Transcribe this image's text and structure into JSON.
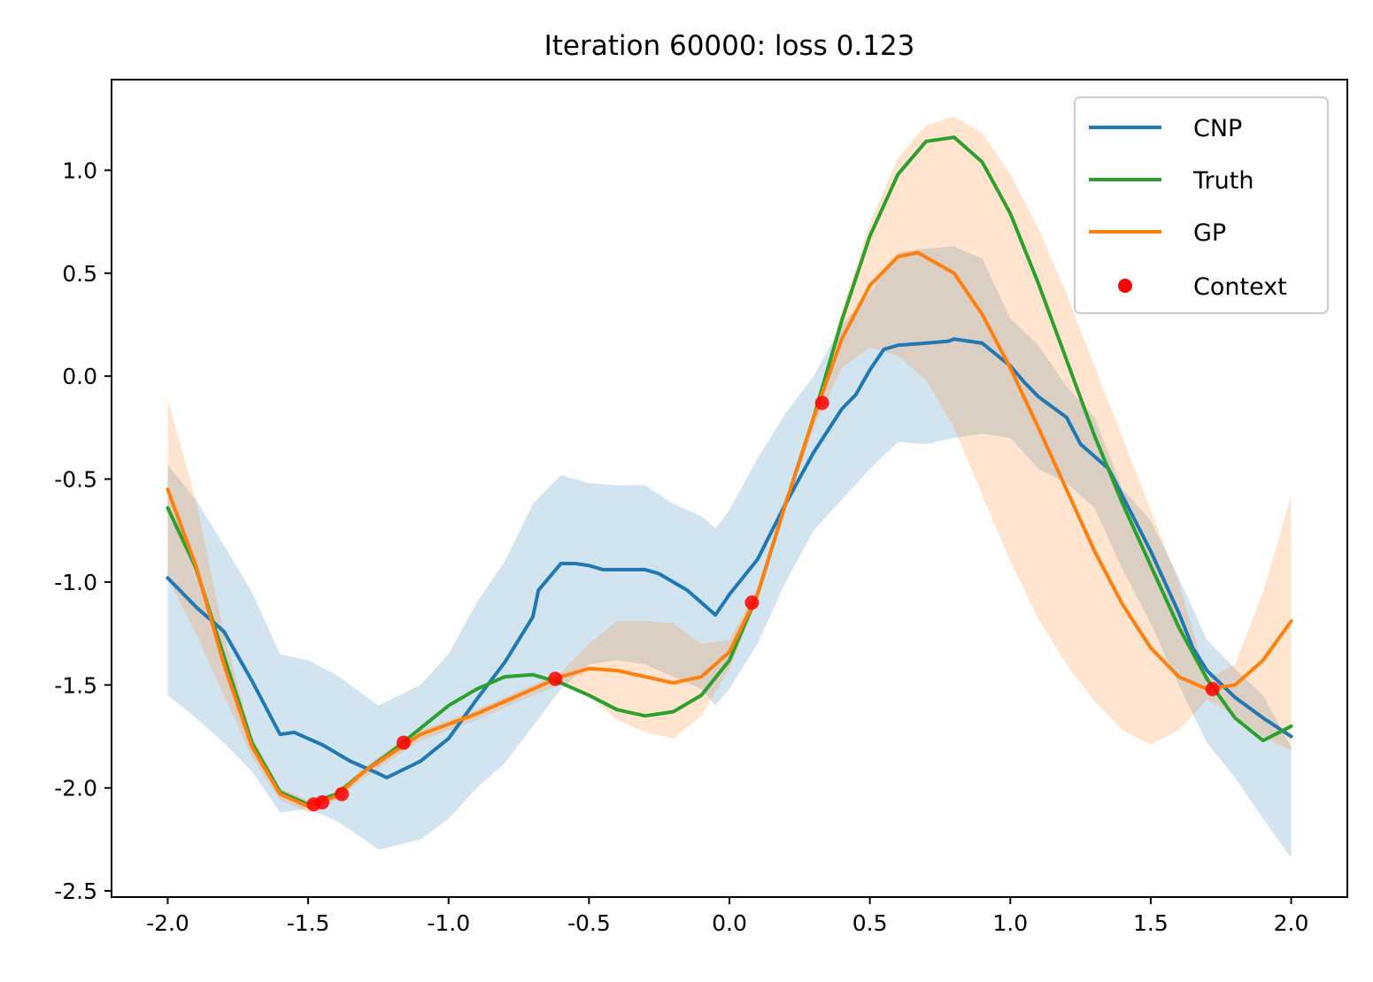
{
  "chart_data": {
    "type": "line",
    "title": "Iteration 60000: loss 0.123",
    "xlabel": "",
    "ylabel": "",
    "xlim": [
      -2.2,
      2.2
    ],
    "ylim": [
      -2.53,
      1.44
    ],
    "xticks": [
      -2.0,
      -1.5,
      -1.0,
      -0.5,
      0.0,
      0.5,
      1.0,
      1.5,
      2.0
    ],
    "xtick_labels": [
      "-2.0",
      "-1.5",
      "-1.0",
      "-0.5",
      "0.0",
      "0.5",
      "1.0",
      "1.5",
      "2.0"
    ],
    "yticks": [
      1.0,
      0.5,
      0.0,
      -0.5,
      -1.0,
      -1.5,
      -2.0,
      -2.5
    ],
    "ytick_labels": [
      "1.0",
      "0.5",
      "0.0",
      "-0.5",
      "-1.0",
      "-1.5",
      "-2.0",
      "-2.5"
    ],
    "grid": false,
    "legend_position": "top-right",
    "series": [
      {
        "name": "CNP",
        "color": "#1f77b4",
        "points": [
          [
            -2.0,
            -0.98
          ],
          [
            -1.9,
            -1.12
          ],
          [
            -1.8,
            -1.24
          ],
          [
            -1.7,
            -1.48
          ],
          [
            -1.6,
            -1.74
          ],
          [
            -1.55,
            -1.73
          ],
          [
            -1.45,
            -1.79
          ],
          [
            -1.35,
            -1.87
          ],
          [
            -1.25,
            -1.93
          ],
          [
            -1.22,
            -1.95
          ],
          [
            -1.1,
            -1.87
          ],
          [
            -1.0,
            -1.76
          ],
          [
            -0.9,
            -1.57
          ],
          [
            -0.8,
            -1.39
          ],
          [
            -0.7,
            -1.17
          ],
          [
            -0.68,
            -1.04
          ],
          [
            -0.6,
            -0.91
          ],
          [
            -0.55,
            -0.91
          ],
          [
            -0.5,
            -0.92
          ],
          [
            -0.45,
            -0.94
          ],
          [
            -0.3,
            -0.94
          ],
          [
            -0.25,
            -0.96
          ],
          [
            -0.15,
            -1.04
          ],
          [
            -0.1,
            -1.1
          ],
          [
            -0.05,
            -1.16
          ],
          [
            0.0,
            -1.06
          ],
          [
            0.1,
            -0.89
          ],
          [
            0.2,
            -0.62
          ],
          [
            0.3,
            -0.37
          ],
          [
            0.4,
            -0.16
          ],
          [
            0.45,
            -0.09
          ],
          [
            0.5,
            0.03
          ],
          [
            0.55,
            0.13
          ],
          [
            0.6,
            0.15
          ],
          [
            0.7,
            0.16
          ],
          [
            0.78,
            0.17
          ],
          [
            0.8,
            0.18
          ],
          [
            0.9,
            0.16
          ],
          [
            1.0,
            0.05
          ],
          [
            1.05,
            -0.03
          ],
          [
            1.1,
            -0.1
          ],
          [
            1.2,
            -0.2
          ],
          [
            1.25,
            -0.33
          ],
          [
            1.35,
            -0.45
          ],
          [
            1.5,
            -0.85
          ],
          [
            1.6,
            -1.15
          ],
          [
            1.65,
            -1.32
          ],
          [
            1.7,
            -1.43
          ],
          [
            1.8,
            -1.56
          ],
          [
            1.9,
            -1.66
          ],
          [
            2.0,
            -1.75
          ]
        ]
      },
      {
        "name": "Truth",
        "color": "#2ca02c",
        "points": [
          [
            -2.0,
            -0.64
          ],
          [
            -1.9,
            -0.93
          ],
          [
            -1.8,
            -1.36
          ],
          [
            -1.7,
            -1.78
          ],
          [
            -1.6,
            -2.02
          ],
          [
            -1.5,
            -2.08
          ],
          [
            -1.4,
            -2.03
          ],
          [
            -1.3,
            -1.92
          ],
          [
            -1.2,
            -1.82
          ],
          [
            -1.1,
            -1.71
          ],
          [
            -1.0,
            -1.6
          ],
          [
            -0.9,
            -1.52
          ],
          [
            -0.8,
            -1.46
          ],
          [
            -0.7,
            -1.45
          ],
          [
            -0.6,
            -1.49
          ],
          [
            -0.5,
            -1.55
          ],
          [
            -0.4,
            -1.62
          ],
          [
            -0.3,
            -1.65
          ],
          [
            -0.2,
            -1.63
          ],
          [
            -0.1,
            -1.55
          ],
          [
            0.0,
            -1.38
          ],
          [
            0.1,
            -1.06
          ],
          [
            0.2,
            -0.62
          ],
          [
            0.3,
            -0.2
          ],
          [
            0.4,
            0.27
          ],
          [
            0.5,
            0.68
          ],
          [
            0.6,
            0.98
          ],
          [
            0.7,
            1.14
          ],
          [
            0.8,
            1.16
          ],
          [
            0.9,
            1.04
          ],
          [
            1.0,
            0.79
          ],
          [
            1.1,
            0.45
          ],
          [
            1.2,
            0.08
          ],
          [
            1.3,
            -0.29
          ],
          [
            1.4,
            -0.62
          ],
          [
            1.5,
            -0.92
          ],
          [
            1.6,
            -1.22
          ],
          [
            1.7,
            -1.47
          ],
          [
            1.8,
            -1.66
          ],
          [
            1.9,
            -1.77
          ],
          [
            2.0,
            -1.7
          ]
        ]
      },
      {
        "name": "GP",
        "color": "#ff7f0e",
        "points": [
          [
            -2.0,
            -0.55
          ],
          [
            -1.9,
            -0.92
          ],
          [
            -1.8,
            -1.4
          ],
          [
            -1.7,
            -1.8
          ],
          [
            -1.6,
            -2.03
          ],
          [
            -1.5,
            -2.09
          ],
          [
            -1.4,
            -2.04
          ],
          [
            -1.3,
            -1.92
          ],
          [
            -1.2,
            -1.83
          ],
          [
            -1.1,
            -1.74
          ],
          [
            -1.0,
            -1.69
          ],
          [
            -0.9,
            -1.64
          ],
          [
            -0.8,
            -1.58
          ],
          [
            -0.7,
            -1.52
          ],
          [
            -0.6,
            -1.46
          ],
          [
            -0.5,
            -1.42
          ],
          [
            -0.4,
            -1.43
          ],
          [
            -0.3,
            -1.46
          ],
          [
            -0.2,
            -1.49
          ],
          [
            -0.1,
            -1.46
          ],
          [
            0.0,
            -1.34
          ],
          [
            0.1,
            -1.06
          ],
          [
            0.2,
            -0.62
          ],
          [
            0.3,
            -0.2
          ],
          [
            0.4,
            0.18
          ],
          [
            0.5,
            0.44
          ],
          [
            0.6,
            0.58
          ],
          [
            0.67,
            0.6
          ],
          [
            0.8,
            0.5
          ],
          [
            0.9,
            0.3
          ],
          [
            1.0,
            0.04
          ],
          [
            1.1,
            -0.25
          ],
          [
            1.2,
            -0.55
          ],
          [
            1.3,
            -0.85
          ],
          [
            1.4,
            -1.11
          ],
          [
            1.5,
            -1.32
          ],
          [
            1.6,
            -1.46
          ],
          [
            1.7,
            -1.52
          ],
          [
            1.8,
            -1.5
          ],
          [
            1.9,
            -1.38
          ],
          [
            2.0,
            -1.19
          ]
        ]
      }
    ],
    "bands": [
      {
        "of": "CNP",
        "color": "#1f77b4",
        "opacity": 0.2,
        "upper": [
          [
            -2.0,
            -0.43
          ],
          [
            -1.9,
            -0.6
          ],
          [
            -1.8,
            -0.82
          ],
          [
            -1.7,
            -1.05
          ],
          [
            -1.6,
            -1.35
          ],
          [
            -1.5,
            -1.38
          ],
          [
            -1.4,
            -1.45
          ],
          [
            -1.3,
            -1.55
          ],
          [
            -1.25,
            -1.6
          ],
          [
            -1.1,
            -1.5
          ],
          [
            -1.0,
            -1.35
          ],
          [
            -0.9,
            -1.1
          ],
          [
            -0.8,
            -0.9
          ],
          [
            -0.7,
            -0.62
          ],
          [
            -0.6,
            -0.48
          ],
          [
            -0.5,
            -0.52
          ],
          [
            -0.4,
            -0.53
          ],
          [
            -0.3,
            -0.53
          ],
          [
            -0.2,
            -0.62
          ],
          [
            -0.1,
            -0.68
          ],
          [
            -0.05,
            -0.74
          ],
          [
            0.0,
            -0.65
          ],
          [
            0.1,
            -0.4
          ],
          [
            0.2,
            -0.18
          ],
          [
            0.3,
            0.0
          ],
          [
            0.4,
            0.25
          ],
          [
            0.5,
            0.4
          ],
          [
            0.6,
            0.6
          ],
          [
            0.7,
            0.62
          ],
          [
            0.8,
            0.63
          ],
          [
            0.9,
            0.57
          ],
          [
            1.0,
            0.28
          ],
          [
            1.1,
            0.15
          ],
          [
            1.2,
            -0.05
          ],
          [
            1.3,
            -0.2
          ],
          [
            1.4,
            -0.55
          ],
          [
            1.5,
            -0.7
          ],
          [
            1.6,
            -0.98
          ],
          [
            1.7,
            -1.28
          ],
          [
            1.8,
            -1.42
          ],
          [
            1.9,
            -1.55
          ],
          [
            2.0,
            -1.8
          ]
        ],
        "lower": [
          [
            -2.0,
            -1.55
          ],
          [
            -1.9,
            -1.66
          ],
          [
            -1.8,
            -1.78
          ],
          [
            -1.7,
            -1.92
          ],
          [
            -1.6,
            -2.12
          ],
          [
            -1.5,
            -2.1
          ],
          [
            -1.4,
            -2.16
          ],
          [
            -1.3,
            -2.25
          ],
          [
            -1.25,
            -2.3
          ],
          [
            -1.1,
            -2.25
          ],
          [
            -1.0,
            -2.15
          ],
          [
            -0.9,
            -2.0
          ],
          [
            -0.8,
            -1.88
          ],
          [
            -0.7,
            -1.7
          ],
          [
            -0.6,
            -1.52
          ],
          [
            -0.5,
            -1.4
          ],
          [
            -0.4,
            -1.38
          ],
          [
            -0.3,
            -1.4
          ],
          [
            -0.2,
            -1.46
          ],
          [
            -0.1,
            -1.52
          ],
          [
            -0.05,
            -1.6
          ],
          [
            0.0,
            -1.52
          ],
          [
            0.1,
            -1.3
          ],
          [
            0.2,
            -1.0
          ],
          [
            0.3,
            -0.75
          ],
          [
            0.4,
            -0.6
          ],
          [
            0.5,
            -0.45
          ],
          [
            0.6,
            -0.32
          ],
          [
            0.7,
            -0.33
          ],
          [
            0.8,
            -0.3
          ],
          [
            0.9,
            -0.28
          ],
          [
            1.0,
            -0.3
          ],
          [
            1.1,
            -0.45
          ],
          [
            1.2,
            -0.52
          ],
          [
            1.3,
            -0.64
          ],
          [
            1.4,
            -0.94
          ],
          [
            1.5,
            -1.2
          ],
          [
            1.6,
            -1.5
          ],
          [
            1.7,
            -1.78
          ],
          [
            1.8,
            -1.95
          ],
          [
            1.9,
            -2.15
          ],
          [
            2.0,
            -2.34
          ]
        ]
      },
      {
        "of": "GP",
        "color": "#ff7f0e",
        "opacity": 0.2,
        "upper": [
          [
            -2.0,
            -0.11
          ],
          [
            -1.9,
            -0.6
          ],
          [
            -1.8,
            -1.25
          ],
          [
            -1.7,
            -1.75
          ],
          [
            -1.6,
            -2.0
          ],
          [
            -1.5,
            -2.06
          ],
          [
            -1.4,
            -2.02
          ],
          [
            -1.3,
            -1.9
          ],
          [
            -1.2,
            -1.8
          ],
          [
            -1.1,
            -1.72
          ],
          [
            -1.0,
            -1.67
          ],
          [
            -0.9,
            -1.62
          ],
          [
            -0.8,
            -1.56
          ],
          [
            -0.7,
            -1.5
          ],
          [
            -0.6,
            -1.44
          ],
          [
            -0.5,
            -1.3
          ],
          [
            -0.4,
            -1.19
          ],
          [
            -0.3,
            -1.19
          ],
          [
            -0.2,
            -1.2
          ],
          [
            -0.1,
            -1.3
          ],
          [
            0.0,
            -1.28
          ],
          [
            0.1,
            -1.03
          ],
          [
            0.2,
            -0.6
          ],
          [
            0.3,
            -0.18
          ],
          [
            0.4,
            0.32
          ],
          [
            0.5,
            0.74
          ],
          [
            0.6,
            1.06
          ],
          [
            0.7,
            1.22
          ],
          [
            0.8,
            1.26
          ],
          [
            0.9,
            1.18
          ],
          [
            1.0,
            0.98
          ],
          [
            1.1,
            0.72
          ],
          [
            1.2,
            0.4
          ],
          [
            1.3,
            0.05
          ],
          [
            1.4,
            -0.3
          ],
          [
            1.5,
            -0.65
          ],
          [
            1.6,
            -1.0
          ],
          [
            1.7,
            -1.47
          ],
          [
            1.8,
            -1.4
          ],
          [
            1.9,
            -1.05
          ],
          [
            2.0,
            -0.58
          ]
        ],
        "lower": [
          [
            -2.0,
            -0.98
          ],
          [
            -1.9,
            -1.25
          ],
          [
            -1.8,
            -1.55
          ],
          [
            -1.7,
            -1.85
          ],
          [
            -1.6,
            -2.06
          ],
          [
            -1.5,
            -2.12
          ],
          [
            -1.4,
            -2.06
          ],
          [
            -1.3,
            -1.95
          ],
          [
            -1.2,
            -1.86
          ],
          [
            -1.1,
            -1.77
          ],
          [
            -1.0,
            -1.72
          ],
          [
            -0.9,
            -1.67
          ],
          [
            -0.8,
            -1.61
          ],
          [
            -0.7,
            -1.55
          ],
          [
            -0.6,
            -1.5
          ],
          [
            -0.5,
            -1.55
          ],
          [
            -0.4,
            -1.67
          ],
          [
            -0.3,
            -1.73
          ],
          [
            -0.2,
            -1.76
          ],
          [
            -0.1,
            -1.65
          ],
          [
            0.0,
            -1.42
          ],
          [
            0.1,
            -1.09
          ],
          [
            0.2,
            -0.65
          ],
          [
            0.3,
            -0.25
          ],
          [
            0.4,
            0.04
          ],
          [
            0.5,
            0.14
          ],
          [
            0.6,
            0.1
          ],
          [
            0.7,
            -0.02
          ],
          [
            0.8,
            -0.25
          ],
          [
            0.9,
            -0.58
          ],
          [
            1.0,
            -0.9
          ],
          [
            1.1,
            -1.18
          ],
          [
            1.2,
            -1.4
          ],
          [
            1.3,
            -1.58
          ],
          [
            1.4,
            -1.72
          ],
          [
            1.5,
            -1.79
          ],
          [
            1.6,
            -1.72
          ],
          [
            1.7,
            -1.57
          ],
          [
            1.8,
            -1.65
          ],
          [
            1.9,
            -1.75
          ],
          [
            2.0,
            -1.82
          ]
        ]
      }
    ],
    "context": {
      "name": "Context",
      "color": "#ff0000",
      "points": [
        [
          -1.48,
          -2.08
        ],
        [
          -1.45,
          -2.07
        ],
        [
          -1.38,
          -2.03
        ],
        [
          -1.16,
          -1.78
        ],
        [
          -0.62,
          -1.47
        ],
        [
          0.08,
          -1.1
        ],
        [
          0.33,
          -0.13
        ],
        [
          1.72,
          -1.52
        ]
      ]
    }
  }
}
